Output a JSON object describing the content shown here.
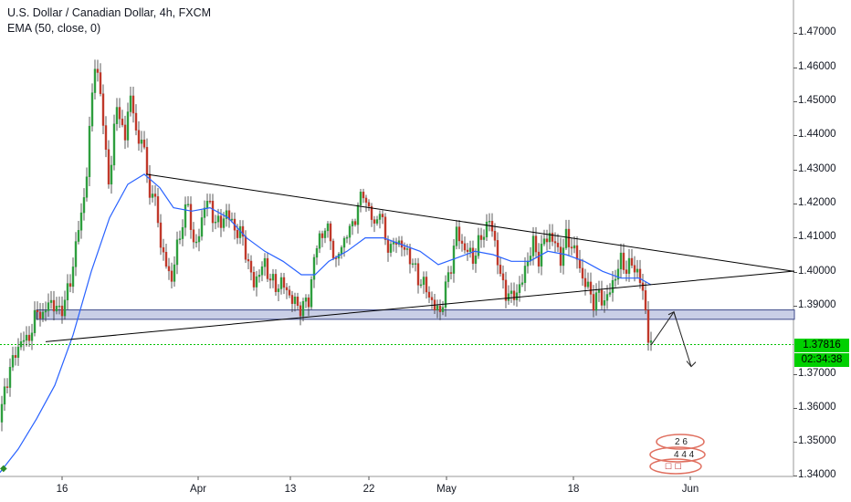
{
  "header": {
    "title": "U.S. Dollar / Canadian Dollar, 4h, FXCM",
    "indicator": "EMA (50, close, 0)"
  },
  "price_axis": {
    "ticks": [
      "1.47000",
      "1.46000",
      "1.45000",
      "1.44000",
      "1.43000",
      "1.42000",
      "1.41000",
      "1.40000",
      "1.39000",
      "1.37000",
      "1.36000",
      "1.35000",
      "1.34000"
    ],
    "tick_values": [
      1.47,
      1.46,
      1.45,
      1.44,
      1.43,
      1.42,
      1.41,
      1.4,
      1.39,
      1.37,
      1.36,
      1.35,
      1.34
    ]
  },
  "time_axis": {
    "ticks": [
      "16",
      "Apr",
      "13",
      "22",
      "May",
      "18",
      "Jun"
    ]
  },
  "last_price": {
    "value": "1.37816",
    "countdown": "02:34:38"
  },
  "colors": {
    "up": "#26a69a",
    "up_body": "#2e9e3e",
    "down": "#c0392b",
    "ema": "#2962ff",
    "zone_fill": "#c9cfe6",
    "zone_border": "#3d4a8a",
    "trendline": "#000000",
    "price_line": "#00c000"
  },
  "chart_data": {
    "type": "candlestick",
    "title": "U.S. Dollar / Canadian Dollar, 4h, FXCM",
    "ylim": [
      1.3388,
      1.481
    ],
    "price_path": [
      [
        0,
        1.355
      ],
      [
        6,
        1.366
      ],
      [
        12,
        1.372
      ],
      [
        18,
        1.376
      ],
      [
        24,
        1.38
      ],
      [
        30,
        1.379
      ],
      [
        36,
        1.384
      ],
      [
        42,
        1.389
      ],
      [
        48,
        1.386
      ],
      [
        54,
        1.392
      ],
      [
        60,
        1.389
      ],
      [
        66,
        1.388
      ],
      [
        72,
        1.392
      ],
      [
        78,
        1.398
      ],
      [
        84,
        1.41
      ],
      [
        90,
        1.418
      ],
      [
        96,
        1.432
      ],
      [
        100,
        1.45
      ],
      [
        104,
        1.463
      ],
      [
        108,
        1.456
      ],
      [
        112,
        1.448
      ],
      [
        116,
        1.436
      ],
      [
        120,
        1.423
      ],
      [
        124,
        1.44
      ],
      [
        128,
        1.451
      ],
      [
        132,
        1.444
      ],
      [
        136,
        1.438
      ],
      [
        140,
        1.449
      ],
      [
        144,
        1.451
      ],
      [
        148,
        1.444
      ],
      [
        152,
        1.438
      ],
      [
        156,
        1.441
      ],
      [
        160,
        1.43
      ],
      [
        166,
        1.422
      ],
      [
        172,
        1.42
      ],
      [
        176,
        1.407
      ],
      [
        180,
        1.404
      ],
      [
        184,
        1.4
      ],
      [
        188,
        1.398
      ],
      [
        194,
        1.407
      ],
      [
        200,
        1.415
      ],
      [
        206,
        1.42
      ],
      [
        212,
        1.408
      ],
      [
        218,
        1.41
      ],
      [
        224,
        1.421
      ],
      [
        230,
        1.419
      ],
      [
        236,
        1.415
      ],
      [
        242,
        1.414
      ],
      [
        248,
        1.418
      ],
      [
        254,
        1.414
      ],
      [
        260,
        1.412
      ],
      [
        266,
        1.41
      ],
      [
        272,
        1.402
      ],
      [
        278,
        1.396
      ],
      [
        284,
        1.4
      ],
      [
        290,
        1.402
      ],
      [
        296,
        1.398
      ],
      [
        302,
        1.395
      ],
      [
        308,
        1.397
      ],
      [
        314,
        1.394
      ],
      [
        320,
        1.392
      ],
      [
        326,
        1.389
      ],
      [
        332,
        1.39
      ],
      [
        338,
        1.391
      ],
      [
        344,
        1.404
      ],
      [
        350,
        1.41
      ],
      [
        356,
        1.413
      ],
      [
        362,
        1.41
      ],
      [
        368,
        1.402
      ],
      [
        374,
        1.408
      ],
      [
        380,
        1.411
      ],
      [
        386,
        1.414
      ],
      [
        392,
        1.419
      ],
      [
        398,
        1.424
      ],
      [
        404,
        1.418
      ],
      [
        410,
        1.414
      ],
      [
        416,
        1.418
      ],
      [
        422,
        1.41
      ],
      [
        428,
        1.406
      ],
      [
        434,
        1.41
      ],
      [
        440,
        1.407
      ],
      [
        446,
        1.406
      ],
      [
        452,
        1.402
      ],
      [
        458,
        1.398
      ],
      [
        464,
        1.396
      ],
      [
        470,
        1.393
      ],
      [
        476,
        1.389
      ],
      [
        482,
        1.388
      ],
      [
        488,
        1.395
      ],
      [
        494,
        1.402
      ],
      [
        500,
        1.412
      ],
      [
        506,
        1.408
      ],
      [
        512,
        1.406
      ],
      [
        518,
        1.404
      ],
      [
        524,
        1.408
      ],
      [
        530,
        1.412
      ],
      [
        536,
        1.415
      ],
      [
        542,
        1.409
      ],
      [
        548,
        1.398
      ],
      [
        554,
        1.394
      ],
      [
        560,
        1.392
      ],
      [
        566,
        1.394
      ],
      [
        572,
        1.397
      ],
      [
        578,
        1.404
      ],
      [
        584,
        1.408
      ],
      [
        590,
        1.404
      ],
      [
        596,
        1.409
      ],
      [
        602,
        1.411
      ],
      [
        608,
        1.408
      ],
      [
        614,
        1.404
      ],
      [
        620,
        1.41
      ],
      [
        626,
        1.408
      ],
      [
        632,
        1.404
      ],
      [
        638,
        1.398
      ],
      [
        644,
        1.395
      ],
      [
        650,
        1.391
      ],
      [
        656,
        1.393
      ],
      [
        662,
        1.391
      ],
      [
        668,
        1.394
      ],
      [
        674,
        1.399
      ],
      [
        680,
        1.403
      ],
      [
        686,
        1.401
      ],
      [
        692,
        1.402
      ],
      [
        698,
        1.4
      ],
      [
        702,
        1.396
      ],
      [
        706,
        1.391
      ],
      [
        708,
        1.385
      ],
      [
        711,
        1.379
      ],
      [
        713,
        1.378
      ]
    ],
    "ema_path": [
      [
        0,
        1.34
      ],
      [
        20,
        1.347
      ],
      [
        40,
        1.356
      ],
      [
        60,
        1.366
      ],
      [
        80,
        1.381
      ],
      [
        100,
        1.4
      ],
      [
        120,
        1.416
      ],
      [
        140,
        1.426
      ],
      [
        158,
        1.429
      ],
      [
        175,
        1.425
      ],
      [
        190,
        1.419
      ],
      [
        210,
        1.418
      ],
      [
        230,
        1.419
      ],
      [
        250,
        1.416
      ],
      [
        270,
        1.41
      ],
      [
        290,
        1.406
      ],
      [
        310,
        1.403
      ],
      [
        330,
        1.399
      ],
      [
        345,
        1.399
      ],
      [
        360,
        1.403
      ],
      [
        380,
        1.406
      ],
      [
        400,
        1.41
      ],
      [
        420,
        1.41
      ],
      [
        440,
        1.408
      ],
      [
        460,
        1.406
      ],
      [
        480,
        1.402
      ],
      [
        500,
        1.404
      ],
      [
        520,
        1.406
      ],
      [
        540,
        1.405
      ],
      [
        560,
        1.403
      ],
      [
        580,
        1.403
      ],
      [
        600,
        1.406
      ],
      [
        620,
        1.405
      ],
      [
        640,
        1.403
      ],
      [
        660,
        1.4
      ],
      [
        680,
        1.398
      ],
      [
        700,
        1.398
      ],
      [
        713,
        1.396
      ]
    ],
    "trendlines": [
      {
        "name": "upper-trendline",
        "from": [
          160,
          1.429
        ],
        "to": [
          870,
          1.4
        ]
      },
      {
        "name": "lower-trendline",
        "from": [
          50,
          1.379
        ],
        "to": [
          870,
          1.4001
        ]
      }
    ],
    "support_zone": {
      "from_x": 40,
      "to_x": 870,
      "high": 1.3885,
      "low": 1.3857
    },
    "projection": [
      [
        713,
        1.378
      ],
      [
        738,
        1.3879
      ],
      [
        757,
        1.3716
      ]
    ],
    "last_close": 1.37816
  }
}
